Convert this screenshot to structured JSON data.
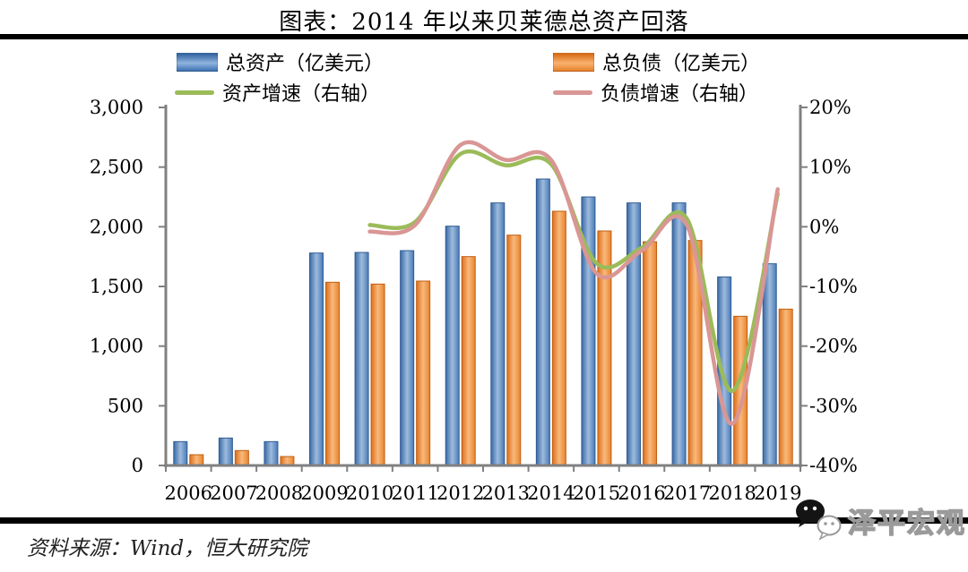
{
  "title": "图表：2014 年以来贝莱德总资产回落",
  "legend": {
    "assets": "总资产（亿美元）",
    "liabilities": "总负债（亿美元）",
    "asset_growth": "资产增速（右轴）",
    "liability_growth": "负债增速（右轴）"
  },
  "footer": {
    "source": "资料来源：Wind，恒大研究院",
    "logo": "泽平宏观"
  },
  "colors": {
    "assets_bar": "#4f81bd",
    "assets_bar_edge": "#2f5b93",
    "liabilities_bar": "#f79646",
    "liabilities_bar_edge": "#c05f14",
    "asset_growth_line": "#9bbb59",
    "liability_growth_line": "#d99694",
    "axis": "#808080",
    "rule": "#000000"
  },
  "chart_data": {
    "type": "bar",
    "subtype": "bar+line dual-axis combo",
    "categories": [
      "2006",
      "2007",
      "2008",
      "2009",
      "2010",
      "2011",
      "2012",
      "2013",
      "2014",
      "2015",
      "2016",
      "2017",
      "2018",
      "2019"
    ],
    "series": [
      {
        "name": "总资产（亿美元）",
        "type": "bar",
        "axis": "left",
        "values": [
          200,
          230,
          200,
          1780,
          1785,
          1800,
          2005,
          2200,
          2400,
          2250,
          2200,
          2200,
          1580,
          1690
        ]
      },
      {
        "name": "总负债（亿美元）",
        "type": "bar",
        "axis": "left",
        "values": [
          90,
          125,
          75,
          1535,
          1520,
          1545,
          1750,
          1930,
          2130,
          1965,
          1875,
          1885,
          1250,
          1310
        ]
      },
      {
        "name": "资产增速（右轴）",
        "type": "line",
        "axis": "right",
        "values": [
          null,
          null,
          null,
          null,
          0.3,
          0.8,
          12.2,
          10.3,
          10.5,
          -6.1,
          -3.5,
          1.3,
          -27.5,
          5.5
        ]
      },
      {
        "name": "负债增速（右轴）",
        "type": "line",
        "axis": "right",
        "values": [
          null,
          null,
          null,
          null,
          -0.8,
          0.3,
          13.7,
          11.2,
          11.2,
          -7.8,
          -4.0,
          0.2,
          -33.0,
          6.3
        ]
      }
    ],
    "left_axis": {
      "min": 0,
      "max": 3000,
      "step": 500,
      "tick_labels": [
        "0",
        "500",
        "1,000",
        "1,500",
        "2,000",
        "2,500",
        "3,000"
      ]
    },
    "right_axis": {
      "min": -40,
      "max": 20,
      "step": 10,
      "tick_labels": [
        "-40%",
        "-30%",
        "-20%",
        "-10%",
        "0%",
        "10%",
        "20%"
      ]
    },
    "grid": false,
    "legend_position": "top"
  }
}
